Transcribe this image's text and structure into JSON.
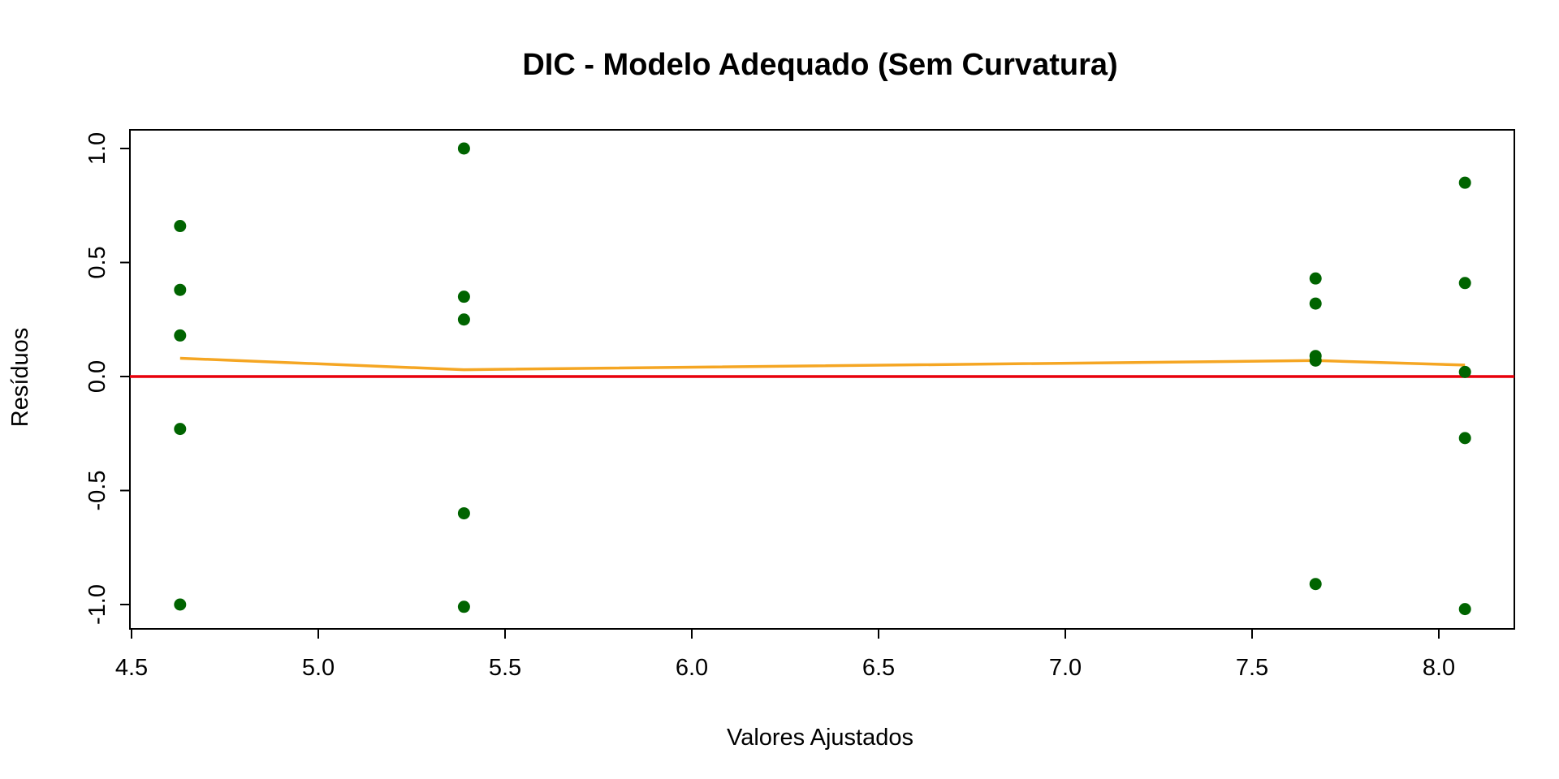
{
  "chart_data": {
    "type": "scatter",
    "title": "DIC - Modelo Adequado (Sem Curvatura)",
    "xlabel": "Valores Ajustados",
    "ylabel": "Resíduos",
    "xlim": [
      4.5,
      8.2
    ],
    "ylim": [
      -1.1,
      1.08
    ],
    "xticks": [
      4.5,
      5.0,
      5.5,
      6.0,
      6.5,
      7.0,
      7.5,
      8.0
    ],
    "xtick_labels": [
      "4.5",
      "5.0",
      "5.5",
      "6.0",
      "6.5",
      "7.0",
      "7.5",
      "8.0"
    ],
    "yticks": [
      -1.0,
      -0.5,
      0.0,
      0.5,
      1.0
    ],
    "ytick_labels": [
      "-1.0",
      "-0.5",
      "0.0",
      "0.5",
      "1.0"
    ],
    "grid": false,
    "series": [
      {
        "kind": "points",
        "color": "#006400",
        "points": [
          {
            "x": 4.63,
            "y": 0.66
          },
          {
            "x": 4.63,
            "y": 0.38
          },
          {
            "x": 4.63,
            "y": 0.18
          },
          {
            "x": 4.63,
            "y": -0.23
          },
          {
            "x": 4.63,
            "y": -1.0
          },
          {
            "x": 5.39,
            "y": 1.0
          },
          {
            "x": 5.39,
            "y": 0.35
          },
          {
            "x": 5.39,
            "y": 0.25
          },
          {
            "x": 5.39,
            "y": -0.6
          },
          {
            "x": 5.39,
            "y": -1.01
          },
          {
            "x": 7.67,
            "y": 0.43
          },
          {
            "x": 7.67,
            "y": 0.32
          },
          {
            "x": 7.67,
            "y": 0.09
          },
          {
            "x": 7.67,
            "y": 0.07
          },
          {
            "x": 7.67,
            "y": -0.91
          },
          {
            "x": 8.07,
            "y": 0.85
          },
          {
            "x": 8.07,
            "y": 0.41
          },
          {
            "x": 8.07,
            "y": 0.02
          },
          {
            "x": 8.07,
            "y": -0.27
          },
          {
            "x": 8.07,
            "y": -1.02
          }
        ]
      },
      {
        "kind": "smooth-line",
        "color": "#F5A623",
        "points": [
          {
            "x": 4.63,
            "y": 0.08
          },
          {
            "x": 5.39,
            "y": 0.03
          },
          {
            "x": 7.67,
            "y": 0.07
          },
          {
            "x": 8.07,
            "y": 0.05
          }
        ]
      }
    ],
    "reference_line": {
      "y": 0.0,
      "color": "#E8000B"
    }
  }
}
